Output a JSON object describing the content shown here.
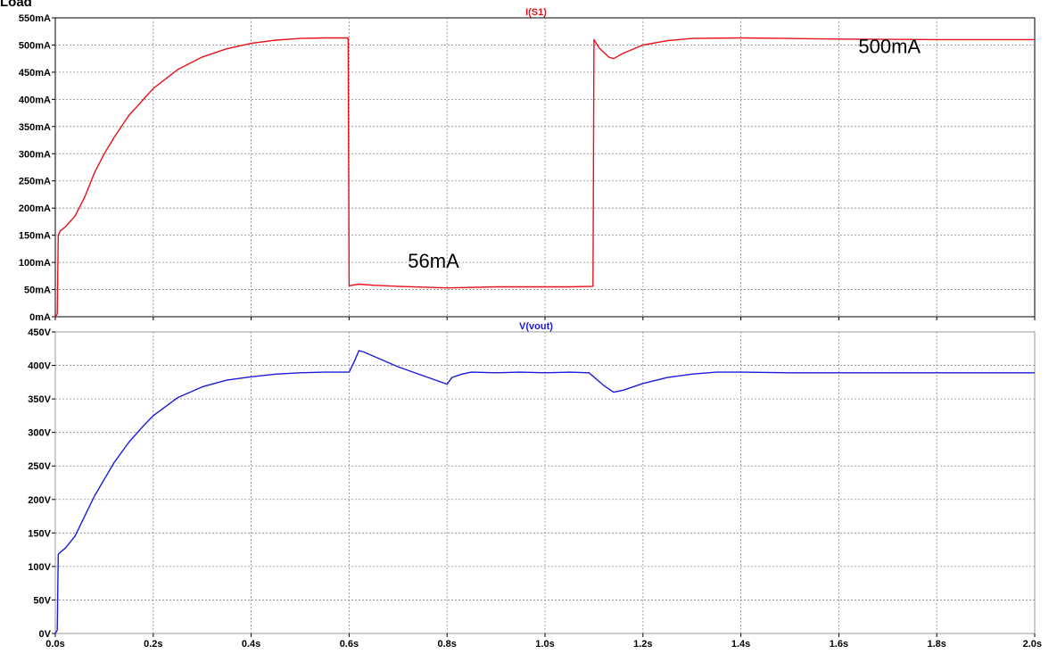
{
  "page_title": "Load",
  "chart_data": [
    {
      "type": "line",
      "title": "I(S1)",
      "title_color": "#e8111a",
      "xlim": [
        0,
        2.0
      ],
      "ylim": [
        0,
        550
      ],
      "x_ticks": [
        "0.0s",
        "0.2s",
        "0.4s",
        "0.6s",
        "0.8s",
        "1.0s",
        "1.2s",
        "1.4s",
        "1.6s",
        "1.8s",
        "2.0s"
      ],
      "y_ticks": [
        "0mA",
        "50mA",
        "100mA",
        "150mA",
        "200mA",
        "250mA",
        "300mA",
        "350mA",
        "400mA",
        "450mA",
        "500mA",
        "550mA"
      ],
      "grid": true,
      "series": [
        {
          "color": "#e8111a",
          "points": [
            [
              0,
              0
            ],
            [
              0.004,
              5
            ],
            [
              0.006,
              150
            ],
            [
              0.01,
              158
            ],
            [
              0.02,
              165
            ],
            [
              0.04,
              185
            ],
            [
              0.06,
              220
            ],
            [
              0.08,
              265
            ],
            [
              0.1,
              300
            ],
            [
              0.12,
              330
            ],
            [
              0.15,
              370
            ],
            [
              0.18,
              400
            ],
            [
              0.2,
              420
            ],
            [
              0.25,
              455
            ],
            [
              0.3,
              478
            ],
            [
              0.35,
              493
            ],
            [
              0.4,
              503
            ],
            [
              0.45,
              509
            ],
            [
              0.5,
              512
            ],
            [
              0.55,
              513
            ],
            [
              0.598,
              513
            ],
            [
              0.6,
              57
            ],
            [
              0.62,
              60
            ],
            [
              0.65,
              58
            ],
            [
              0.7,
              56
            ],
            [
              0.8,
              53
            ],
            [
              0.9,
              55
            ],
            [
              1.0,
              55
            ],
            [
              1.05,
              55
            ],
            [
              1.098,
              56
            ],
            [
              1.1,
              510
            ],
            [
              1.11,
              495
            ],
            [
              1.13,
              478
            ],
            [
              1.14,
              475
            ],
            [
              1.16,
              485
            ],
            [
              1.2,
              500
            ],
            [
              1.25,
              508
            ],
            [
              1.3,
              512
            ],
            [
              1.4,
              513
            ],
            [
              1.5,
              512
            ],
            [
              1.6,
              511
            ],
            [
              1.8,
              510
            ],
            [
              2.0,
              510
            ]
          ]
        }
      ],
      "annotations": [
        {
          "text": "500mA",
          "x": 1.64,
          "y": 485
        },
        {
          "text": "56mA",
          "x": 0.72,
          "y": 90
        }
      ]
    },
    {
      "type": "line",
      "title": "V(vout)",
      "title_color": "#1a1adb",
      "xlim": [
        0,
        2.0
      ],
      "ylim": [
        0,
        450
      ],
      "x_ticks": [
        "0.0s",
        "0.2s",
        "0.4s",
        "0.6s",
        "0.8s",
        "1.0s",
        "1.2s",
        "1.4s",
        "1.6s",
        "1.8s",
        "2.0s"
      ],
      "y_ticks": [
        "0V",
        "50V",
        "100V",
        "150V",
        "200V",
        "250V",
        "300V",
        "350V",
        "400V",
        "450V"
      ],
      "grid": true,
      "series": [
        {
          "color": "#1a1adb",
          "points": [
            [
              0,
              0
            ],
            [
              0.004,
              5
            ],
            [
              0.006,
              118
            ],
            [
              0.01,
              121
            ],
            [
              0.02,
              127
            ],
            [
              0.04,
              145
            ],
            [
              0.06,
              175
            ],
            [
              0.08,
              205
            ],
            [
              0.1,
              230
            ],
            [
              0.12,
              255
            ],
            [
              0.15,
              285
            ],
            [
              0.18,
              310
            ],
            [
              0.2,
              325
            ],
            [
              0.25,
              352
            ],
            [
              0.3,
              368
            ],
            [
              0.35,
              378
            ],
            [
              0.4,
              383
            ],
            [
              0.45,
              387
            ],
            [
              0.5,
              389
            ],
            [
              0.55,
              390
            ],
            [
              0.6,
              390
            ],
            [
              0.61,
              405
            ],
            [
              0.62,
              422
            ],
            [
              0.63,
              420
            ],
            [
              0.7,
              398
            ],
            [
              0.8,
              372
            ],
            [
              0.81,
              382
            ],
            [
              0.83,
              387
            ],
            [
              0.85,
              390
            ],
            [
              0.9,
              389
            ],
            [
              0.95,
              390
            ],
            [
              1.0,
              389
            ],
            [
              1.05,
              390
            ],
            [
              1.09,
              389
            ],
            [
              1.12,
              370
            ],
            [
              1.14,
              360
            ],
            [
              1.16,
              363
            ],
            [
              1.2,
              373
            ],
            [
              1.25,
              382
            ],
            [
              1.3,
              387
            ],
            [
              1.35,
              390
            ],
            [
              1.4,
              390
            ],
            [
              1.5,
              389
            ],
            [
              1.6,
              389
            ],
            [
              1.8,
              389
            ],
            [
              2.0,
              389
            ]
          ]
        }
      ]
    }
  ]
}
